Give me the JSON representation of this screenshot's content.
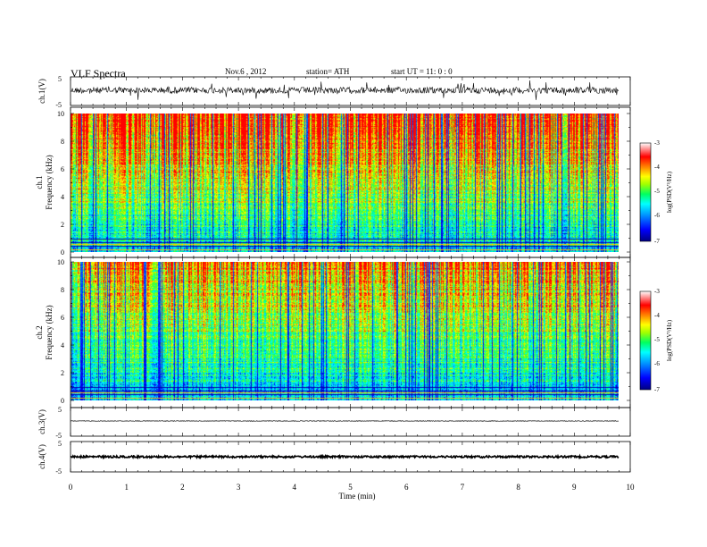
{
  "header": {
    "title": "VLF  Spectra",
    "date": "Nov.6   , 2012",
    "station": "station= ATH",
    "start": "start  UT  =    11: 0  : 0"
  },
  "xaxis": {
    "label": "Time  (min)",
    "ticks": [
      "0",
      "1",
      "2",
      "3",
      "4",
      "5",
      "6",
      "7",
      "8",
      "9",
      "10"
    ]
  },
  "panels": {
    "ch1": {
      "label": "ch.1(V)",
      "ticks": [
        "5",
        "-5"
      ]
    },
    "spec1": {
      "label_line1": "ch.1",
      "label_line2": "Frequency  (kHz)",
      "ticks": [
        "10",
        "8",
        "6",
        "4",
        "2",
        "0"
      ]
    },
    "spec2": {
      "label_line1": "ch.2",
      "label_line2": "Frequency  (kHz)",
      "ticks": [
        "10",
        "8",
        "6",
        "4",
        "2",
        "0"
      ]
    },
    "ch3": {
      "label": "ch.3(V)",
      "ticks": [
        "5",
        "-5"
      ]
    },
    "ch4": {
      "label": "ch.4(V)",
      "ticks": [
        "5",
        "-5"
      ]
    }
  },
  "colorbar": {
    "label": "log(PSD(V²/Hz)",
    "ticks": [
      "-3",
      "-4",
      "-5",
      "-6",
      "-7"
    ]
  },
  "colors": {
    "spectrum": [
      "#000080",
      "#0000ff",
      "#00a0ff",
      "#00ffff",
      "#00ff80",
      "#80ff00",
      "#ffff00",
      "#ff8000",
      "#ff0000",
      "#ffffff"
    ]
  },
  "chart_data": [
    {
      "type": "line",
      "panel": "ch.1(V)",
      "xlim": [
        0,
        10
      ],
      "ylim": [
        -5,
        5
      ],
      "x_units": "min",
      "description_values": {
        "baseline": 0,
        "typical_amplitude": 1
      }
    },
    {
      "type": "heatmap",
      "panel": "ch.1 Frequency (kHz)",
      "xlim": [
        0,
        10
      ],
      "ylim": [
        0,
        10
      ],
      "colorbar_range": [
        -7,
        -3
      ],
      "colorbar_label": "log(PSD(V²/Hz)"
    },
    {
      "type": "heatmap",
      "panel": "ch.2 Frequency (kHz)",
      "xlim": [
        0,
        10
      ],
      "ylim": [
        0,
        10
      ],
      "colorbar_range": [
        -7,
        -3
      ],
      "colorbar_label": "log(PSD(V²/Hz)"
    },
    {
      "type": "line",
      "panel": "ch.3(V)",
      "xlim": [
        0,
        10
      ],
      "ylim": [
        -5,
        5
      ],
      "description_values": {
        "baseline": 0,
        "typical_amplitude": 0
      }
    },
    {
      "type": "line",
      "panel": "ch.4(V)",
      "xlim": [
        0,
        10
      ],
      "ylim": [
        -5,
        5
      ],
      "description_values": {
        "baseline": 0,
        "typical_amplitude": 0.3
      }
    }
  ]
}
